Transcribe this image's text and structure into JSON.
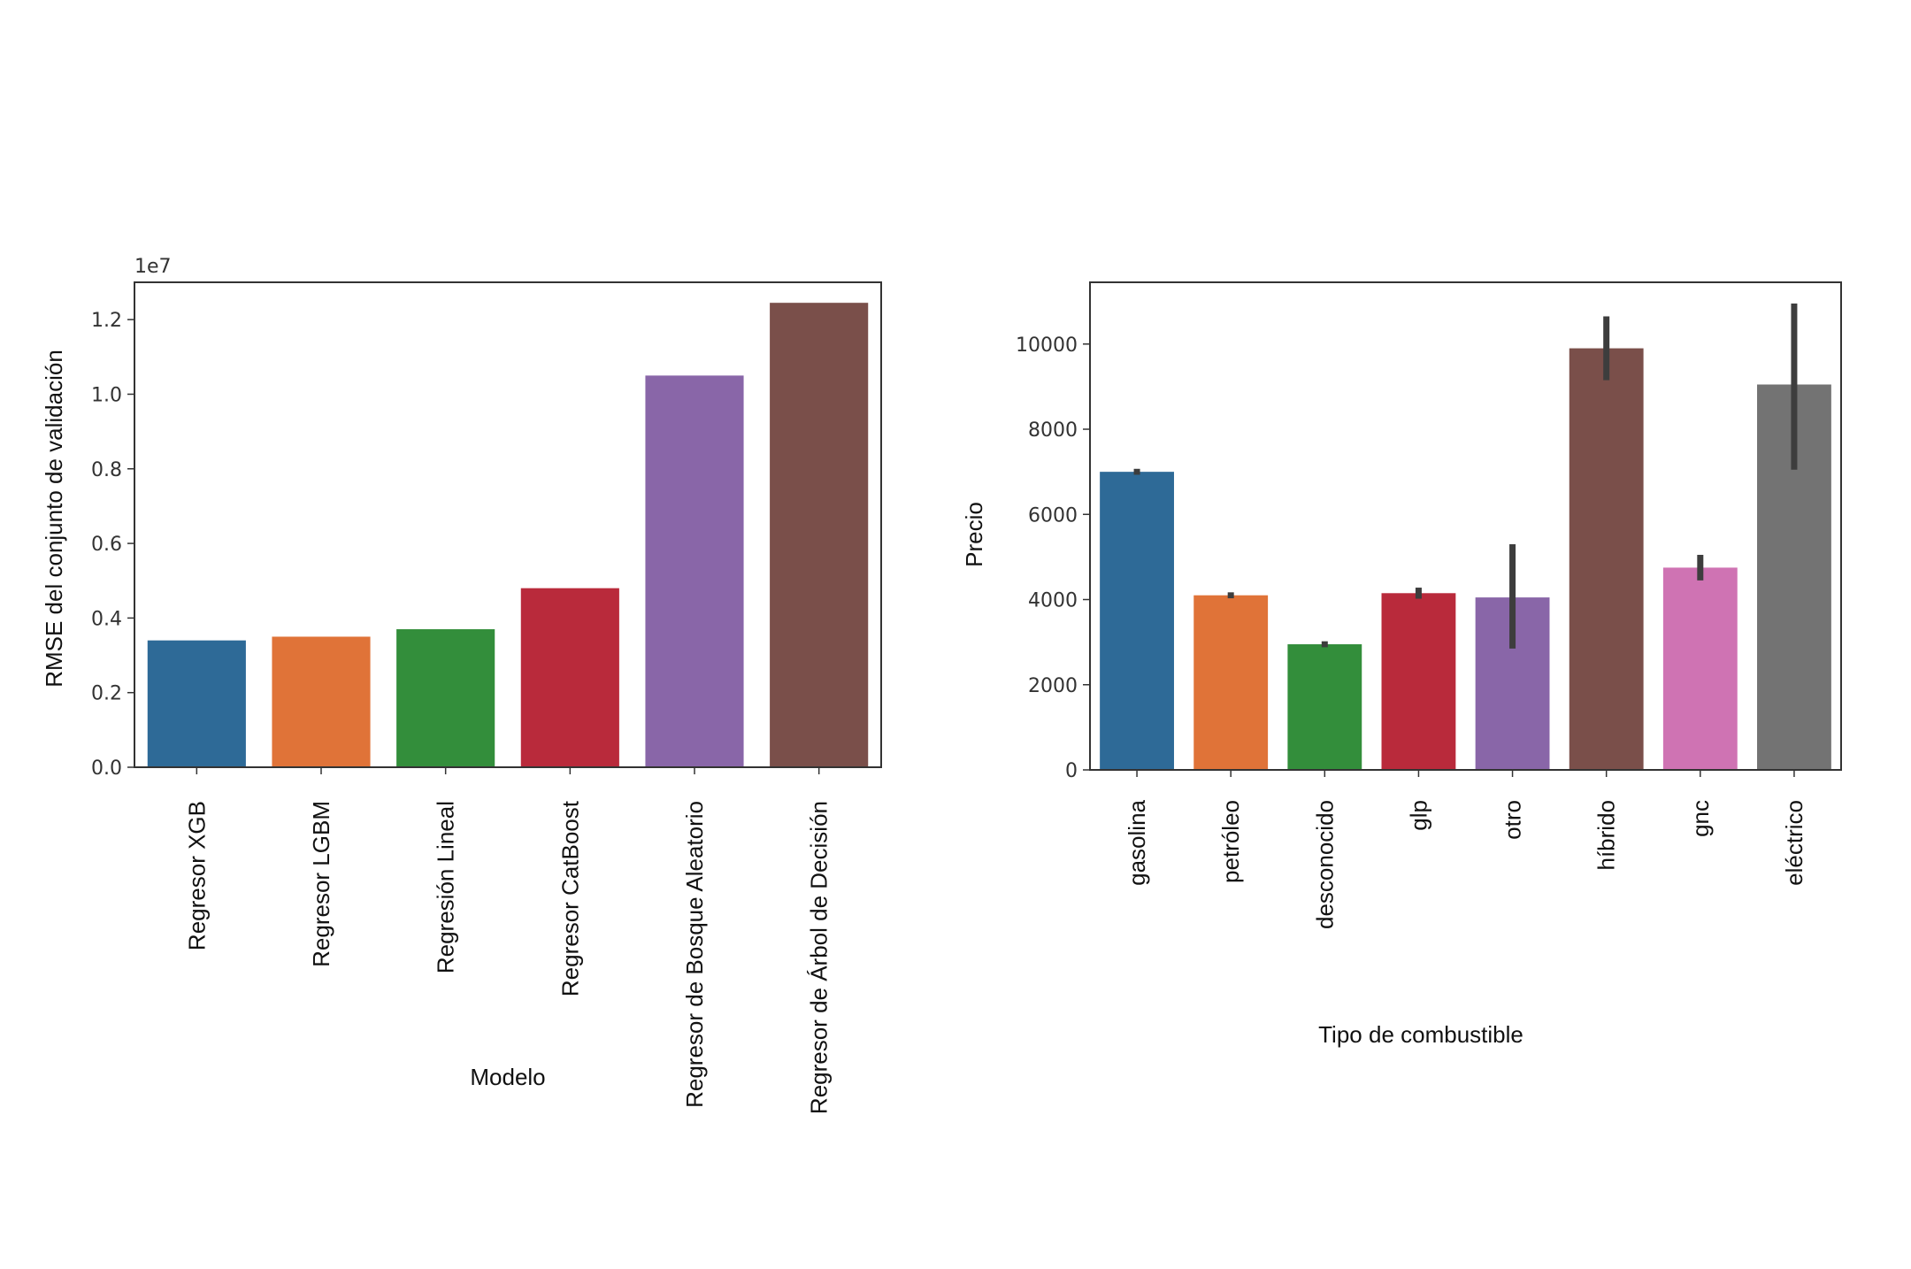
{
  "chart_data": [
    {
      "type": "bar",
      "title": "",
      "xlabel": "Modelo",
      "ylabel": "RMSE del conjunto de validación",
      "offset_text": "1e7",
      "categories": [
        "Regresor XGB",
        "Regresor LGBM",
        "Regresión Lineal",
        "Regresor CatBoost",
        "Regresor de Bosque Aleatorio",
        "Regresor de Árbol de Decisión"
      ],
      "values": [
        0.34,
        0.35,
        0.37,
        0.48,
        1.05,
        1.245
      ],
      "colors": [
        "#2e6a97",
        "#e07338",
        "#338e3b",
        "#b92a3b",
        "#8966a8",
        "#7a4f4a"
      ],
      "ylim": [
        0,
        1.3
      ],
      "yticks": [
        0.0,
        0.2,
        0.4,
        0.6,
        0.8,
        1.0,
        1.2
      ],
      "ytick_labels": [
        "0.0",
        "0.2",
        "0.4",
        "0.6",
        "0.8",
        "1.0",
        "1.2"
      ],
      "grid": false
    },
    {
      "type": "bar",
      "title": "",
      "xlabel": "Tipo de combustible",
      "ylabel": "Precio",
      "categories": [
        "gasolina",
        "petróleo",
        "desconocido",
        "glp",
        "otro",
        "híbrido",
        "gnc",
        "eléctrico"
      ],
      "values": [
        7000,
        4100,
        2950,
        4150,
        4050,
        9900,
        4750,
        9050
      ],
      "error_low": [
        6930,
        4030,
        2880,
        4020,
        2850,
        9150,
        4450,
        7050
      ],
      "error_high": [
        7070,
        4170,
        3020,
        4280,
        5300,
        10650,
        5050,
        10950
      ],
      "colors": [
        "#2e6a97",
        "#e07338",
        "#338e3b",
        "#b92a3b",
        "#8966a8",
        "#7a4f4a",
        "#cf73b3",
        "#737373"
      ],
      "ylim": [
        0,
        11450
      ],
      "yticks": [
        0,
        2000,
        4000,
        6000,
        8000,
        10000
      ],
      "ytick_labels": [
        "0",
        "2000",
        "4000",
        "6000",
        "8000",
        "10000"
      ],
      "grid": false
    }
  ]
}
